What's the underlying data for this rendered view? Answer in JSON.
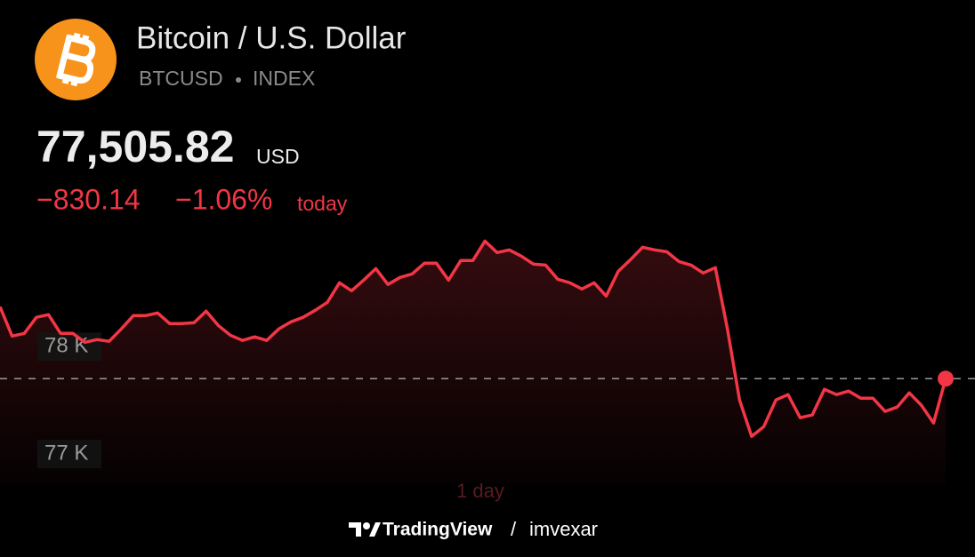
{
  "header": {
    "title": "Bitcoin / U.S. Dollar",
    "symbol": "BTCUSD",
    "exchange": "INDEX",
    "price": "77,505.82",
    "currency": "USD",
    "change": "−830.14",
    "change_percent": "−1.06%",
    "period": "today"
  },
  "chart_data": {
    "type": "area",
    "x_label": "1 day",
    "color": "#f23645",
    "values": [
      78372,
      78099,
      78124,
      78273,
      78298,
      78124,
      78124,
      78041,
      78066,
      78050,
      78165,
      78289,
      78289,
      78314,
      78215,
      78215,
      78223,
      78331,
      78198,
      78107,
      78058,
      78091,
      78058,
      78165,
      78231,
      78273,
      78339,
      78413,
      78595,
      78521,
      78620,
      78727,
      78579,
      78645,
      78678,
      78777,
      78777,
      78620,
      78802,
      78802,
      78983,
      78876,
      78901,
      78843,
      78769,
      78760,
      78628,
      78595,
      78537,
      78595,
      78471,
      78702,
      78810,
      78926,
      78901,
      78884,
      78793,
      78760,
      78686,
      78736,
      78165,
      77504,
      77165,
      77256,
      77504,
      77554,
      77339,
      77364,
      77603,
      77554,
      77587,
      77521,
      77521,
      77397,
      77438,
      77570,
      77455,
      77289,
      77702
    ],
    "ylim": [
      76720,
      79160
    ],
    "yticks": [
      {
        "value": 77000,
        "label": "77 K"
      },
      {
        "value": 78000,
        "label": "78 K"
      }
    ]
  },
  "footer": {
    "brand": "TradingView",
    "separator": "/",
    "author": "imvexar"
  }
}
